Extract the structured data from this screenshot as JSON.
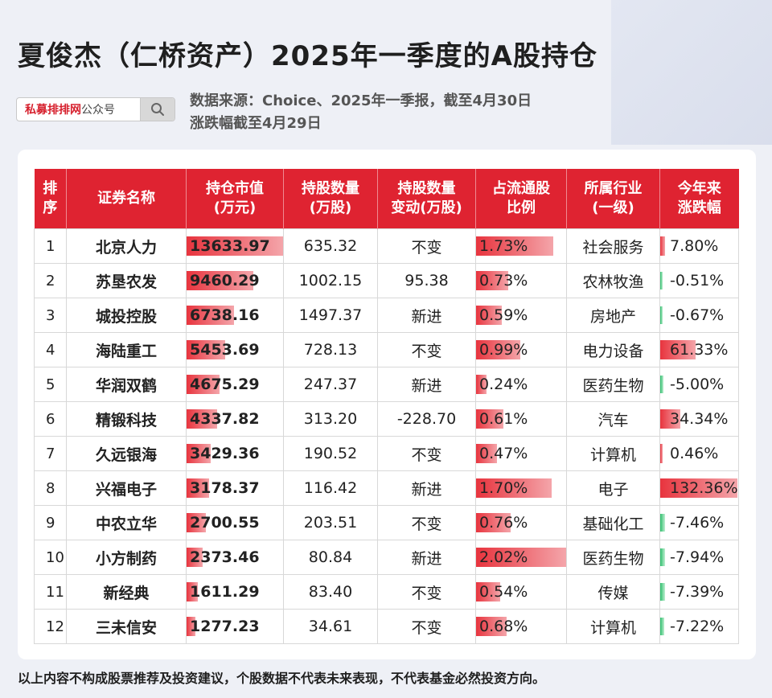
{
  "title": "夏俊杰（仁桥资产）2025年一季度的A股持仓",
  "search": {
    "brand": "私募排排网",
    "suffix": "公众号",
    "icon": "search-icon"
  },
  "sources": {
    "line1": "数据来源：Choice、2025年一季报，截至4月30日",
    "line2": "涨跌幅截至4月29日"
  },
  "table": {
    "headers": [
      [
        "排",
        "序"
      ],
      [
        "证券名称"
      ],
      [
        "持仓市值",
        "(万元)"
      ],
      [
        "持股数量",
        "(万股)"
      ],
      [
        "持股数量",
        "变动(万股)"
      ],
      [
        "占流通股",
        "比例"
      ],
      [
        "所属行业",
        "(一级)"
      ],
      [
        "今年来",
        "涨跌幅"
      ]
    ],
    "rows": [
      {
        "idx": "1",
        "name": "北京人力",
        "mv": "13633.97",
        "mv_fill": 1.0,
        "shares": "635.32",
        "change": "不变",
        "ratio": "1.73%",
        "ratio_fill": 0.86,
        "industry": "社会服务",
        "ytd": "7.80%",
        "ytd_fill": 0.06,
        "ytd_up": true
      },
      {
        "idx": "2",
        "name": "苏垦农发",
        "mv": "9460.29",
        "mv_fill": 0.69,
        "shares": "1002.15",
        "change": "95.38",
        "ratio": "0.73%",
        "ratio_fill": 0.36,
        "industry": "农林牧渔",
        "ytd": "-0.51%",
        "ytd_fill": 0.01,
        "ytd_up": false
      },
      {
        "idx": "3",
        "name": "城投控股",
        "mv": "6738.16",
        "mv_fill": 0.49,
        "shares": "1497.37",
        "change": "新进",
        "ratio": "0.59%",
        "ratio_fill": 0.29,
        "industry": "房地产",
        "ytd": "-0.67%",
        "ytd_fill": 0.01,
        "ytd_up": false
      },
      {
        "idx": "4",
        "name": "海陆重工",
        "mv": "5453.69",
        "mv_fill": 0.4,
        "shares": "728.13",
        "change": "不变",
        "ratio": "0.99%",
        "ratio_fill": 0.49,
        "industry": "电力设备",
        "ytd": "61.33%",
        "ytd_fill": 0.46,
        "ytd_up": true
      },
      {
        "idx": "5",
        "name": "华润双鹤",
        "mv": "4675.29",
        "mv_fill": 0.34,
        "shares": "247.37",
        "change": "新进",
        "ratio": "0.24%",
        "ratio_fill": 0.12,
        "industry": "医药生物",
        "ytd": "-5.00%",
        "ytd_fill": 0.04,
        "ytd_up": false
      },
      {
        "idx": "6",
        "name": "精锻科技",
        "mv": "4337.82",
        "mv_fill": 0.32,
        "shares": "313.20",
        "change": "-228.70",
        "ratio": "0.61%",
        "ratio_fill": 0.3,
        "industry": "汽车",
        "ytd": "34.34%",
        "ytd_fill": 0.26,
        "ytd_up": true
      },
      {
        "idx": "7",
        "name": "久远银海",
        "mv": "3429.36",
        "mv_fill": 0.25,
        "shares": "190.52",
        "change": "不变",
        "ratio": "0.47%",
        "ratio_fill": 0.23,
        "industry": "计算机",
        "ytd": "0.46%",
        "ytd_fill": 0.01,
        "ytd_up": true
      },
      {
        "idx": "8",
        "name": "兴福电子",
        "mv": "3178.37",
        "mv_fill": 0.23,
        "shares": "116.42",
        "change": "新进",
        "ratio": "1.70%",
        "ratio_fill": 0.84,
        "industry": "电子",
        "ytd": "132.36%",
        "ytd_fill": 1.0,
        "ytd_up": true
      },
      {
        "idx": "9",
        "name": "中农立华",
        "mv": "2700.55",
        "mv_fill": 0.2,
        "shares": "203.51",
        "change": "不变",
        "ratio": "0.76%",
        "ratio_fill": 0.38,
        "industry": "基础化工",
        "ytd": "-7.46%",
        "ytd_fill": 0.06,
        "ytd_up": false
      },
      {
        "idx": "10",
        "name": "小方制药",
        "mv": "2373.46",
        "mv_fill": 0.17,
        "shares": "80.84",
        "change": "新进",
        "ratio": "2.02%",
        "ratio_fill": 1.0,
        "industry": "医药生物",
        "ytd": "-7.94%",
        "ytd_fill": 0.06,
        "ytd_up": false
      },
      {
        "idx": "11",
        "name": "新经典",
        "mv": "1611.29",
        "mv_fill": 0.12,
        "shares": "83.40",
        "change": "不变",
        "ratio": "0.54%",
        "ratio_fill": 0.27,
        "industry": "传媒",
        "ytd": "-7.39%",
        "ytd_fill": 0.06,
        "ytd_up": false
      },
      {
        "idx": "12",
        "name": "三未信安",
        "mv": "1277.23",
        "mv_fill": 0.09,
        "shares": "34.61",
        "change": "不变",
        "ratio": "0.68%",
        "ratio_fill": 0.34,
        "industry": "计算机",
        "ytd": "-7.22%",
        "ytd_fill": 0.05,
        "ytd_up": false
      }
    ]
  },
  "disclaimer": "以上内容不构成股票推荐及投资建议，个股数据不代表未来表现，不代表基金必然投资方向。"
}
